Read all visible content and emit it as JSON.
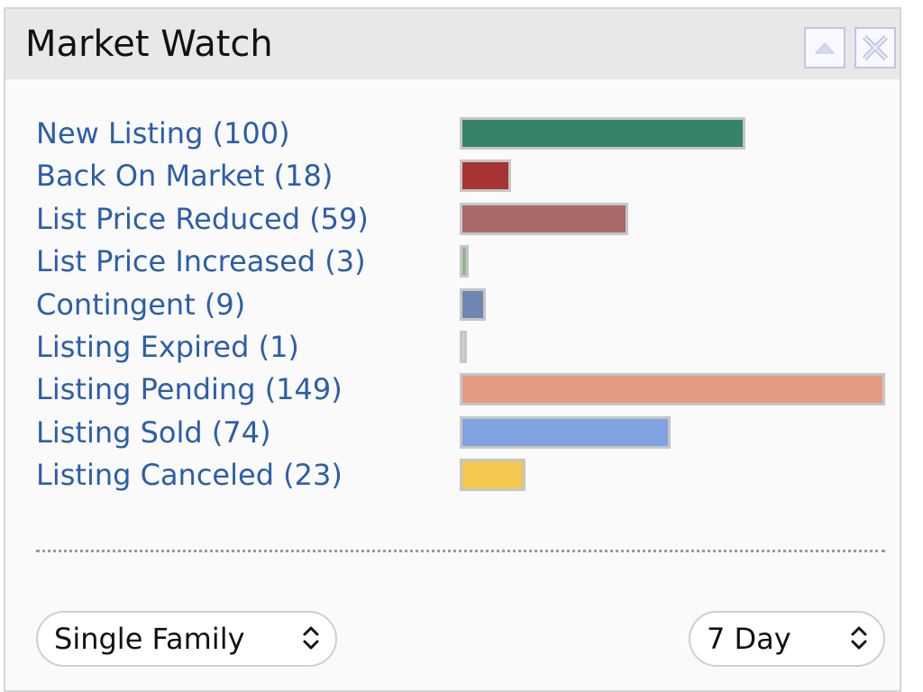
{
  "widget": {
    "title": "Market Watch",
    "collapse_icon": "triangle-up-icon",
    "close_icon": "close-icon"
  },
  "chart_data": {
    "type": "bar",
    "orientation": "horizontal",
    "categories": [
      "New Listing (100)",
      "Back On Market (18)",
      "List Price Reduced (59)",
      "List Price Increased (3)",
      "Contingent (9)",
      "Listing Expired (1)",
      "Listing Pending (149)",
      "Listing Sold (74)",
      "Listing Canceled (23)"
    ],
    "values": [
      100,
      18,
      59,
      3,
      9,
      1,
      149,
      74,
      23
    ],
    "colors": [
      "#37836a",
      "#a73431",
      "#a96a6a",
      "#8dba8c",
      "#6f86b2",
      "#d0d0d0",
      "#e59b82",
      "#80a2e0",
      "#f5c850"
    ],
    "xlim": [
      0,
      149
    ]
  },
  "filters": {
    "property_type": "Single Family",
    "period": "7 Day",
    "chevron_icon": "up-down-chevron-icon"
  }
}
